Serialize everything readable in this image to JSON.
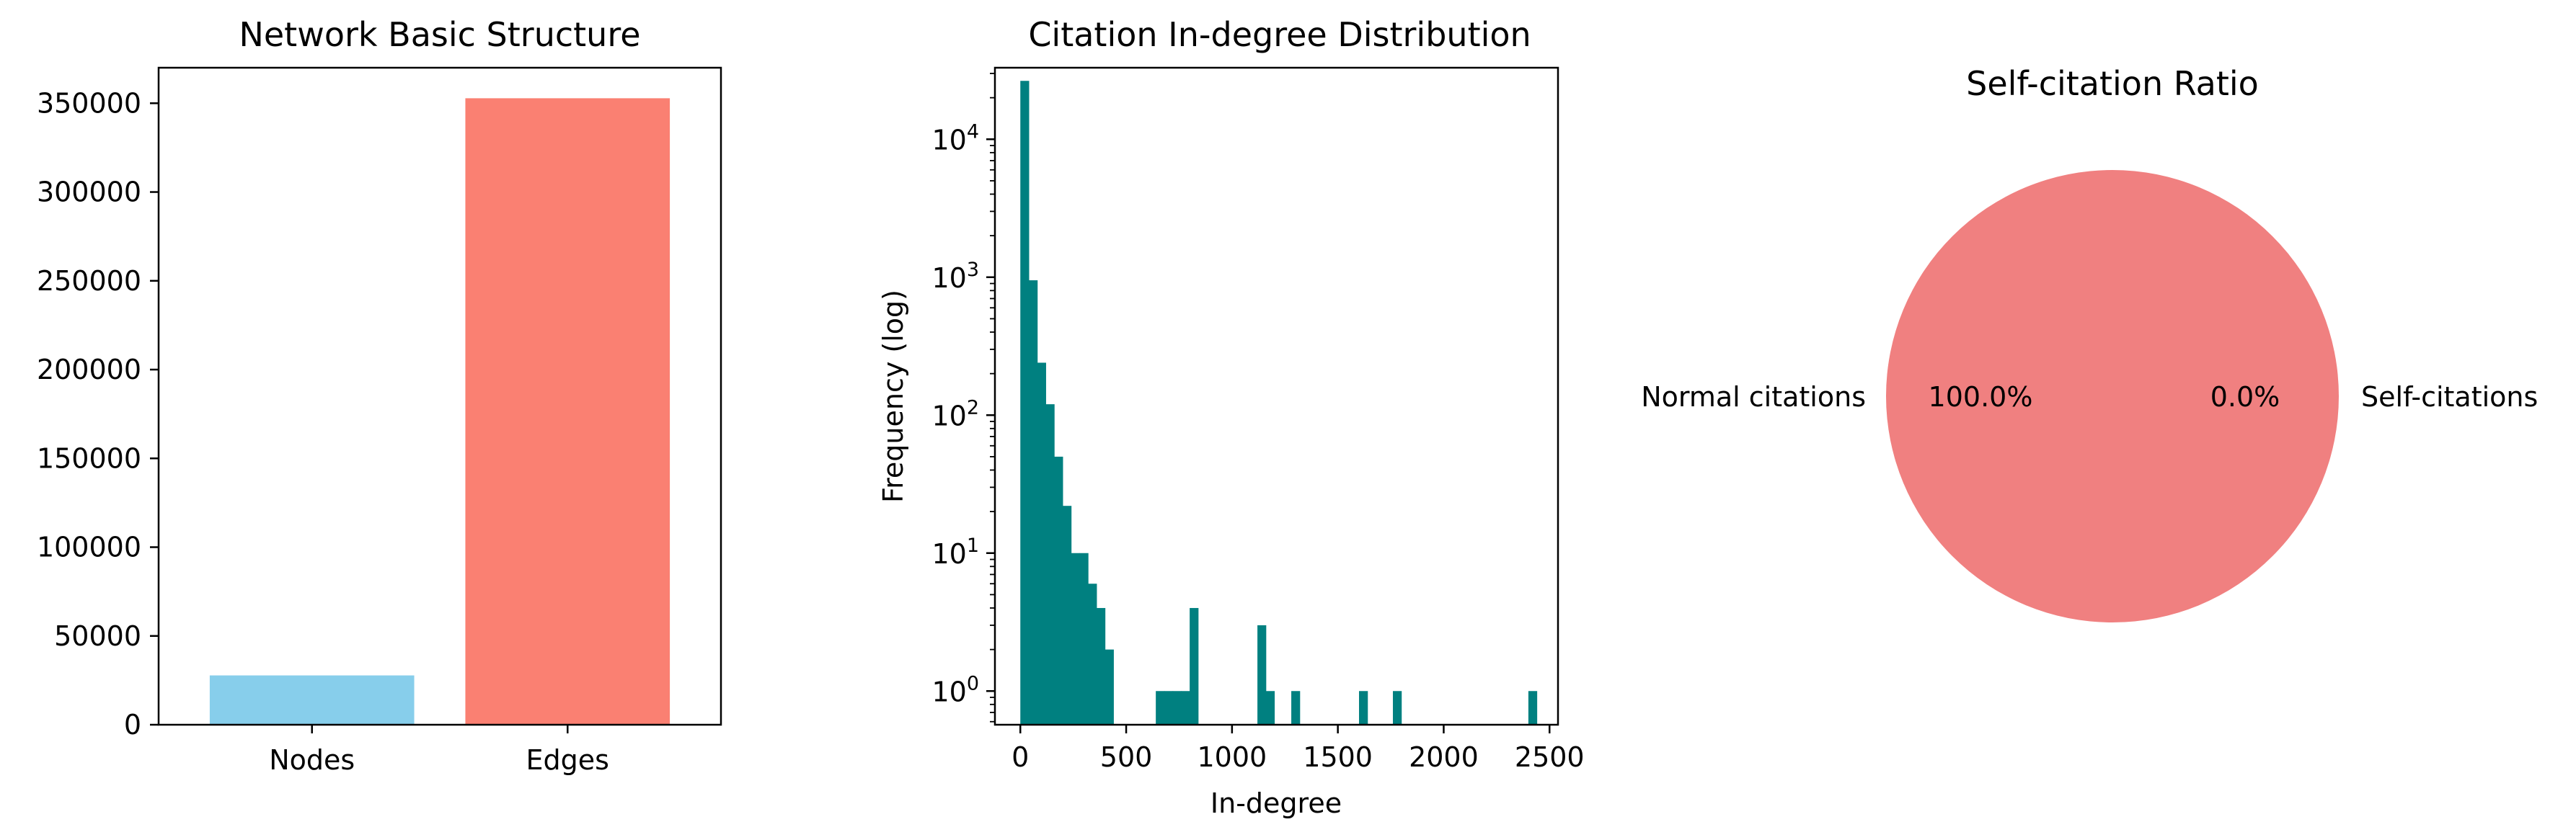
{
  "figure": {
    "titles": [
      "Network Basic Structure",
      "Citation In-degree Distribution",
      "Self-citation Ratio"
    ]
  },
  "chart_data": [
    {
      "type": "bar",
      "title": "Network Basic Structure",
      "xlabel": "",
      "ylabel": "",
      "categories": [
        "Nodes",
        "Edges"
      ],
      "values": [
        27770,
        352807
      ],
      "colors": [
        "#87ceeb",
        "#fa8072"
      ],
      "ylim": [
        0,
        370000
      ],
      "yticks": [
        0,
        50000,
        100000,
        150000,
        200000,
        250000,
        300000,
        350000
      ],
      "grid": false
    },
    {
      "type": "bar",
      "title": "Citation In-degree Distribution",
      "xlabel": "In-degree",
      "ylabel": "Frequency (log)",
      "y_scale": "log",
      "bin_width": 40,
      "bin_edges_start": 0,
      "values": [
        26500,
        950,
        240,
        120,
        50,
        22,
        10,
        10,
        6,
        4,
        2,
        0,
        0,
        0,
        0,
        0,
        1,
        1,
        1,
        1,
        4,
        0,
        0,
        0,
        0,
        0,
        0,
        0,
        3,
        1,
        0,
        0,
        1,
        0,
        0,
        0,
        0,
        0,
        0,
        0,
        1,
        0,
        0,
        0,
        1,
        0,
        0,
        0,
        0,
        0,
        0,
        0,
        0,
        0,
        0,
        0,
        0,
        0,
        0,
        0,
        1
      ],
      "color": "#008080",
      "xlim": [
        -120,
        2540
      ],
      "xticks": [
        0,
        500,
        1000,
        1500,
        2000,
        2500
      ],
      "ylim": [
        0.57,
        33000
      ],
      "yticks": [
        {
          "value": 1,
          "base": "10",
          "exp": "0"
        },
        {
          "value": 10,
          "base": "10",
          "exp": "1"
        },
        {
          "value": 100,
          "base": "10",
          "exp": "2"
        },
        {
          "value": 1000,
          "base": "10",
          "exp": "3"
        },
        {
          "value": 10000,
          "base": "10",
          "exp": "4"
        }
      ],
      "grid": false
    },
    {
      "type": "pie",
      "title": "Self-citation Ratio",
      "labels": [
        "Normal citations",
        "Self-citations"
      ],
      "values": [
        100.0,
        0.0
      ],
      "pct_labels": [
        "100.0%",
        "0.0%"
      ],
      "colors": [
        "#f08080",
        "#f08080"
      ]
    }
  ]
}
